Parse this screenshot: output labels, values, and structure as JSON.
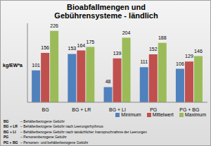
{
  "chart_data": {
    "type": "bar",
    "title": "Bioabfallmengen und Gebührensysteme - ländlich",
    "y_label": "kg/EW*a",
    "categories": [
      "BG",
      "BG + LR",
      "BG + LI",
      "PG",
      "PG + BG"
    ],
    "series": [
      {
        "name": "Minimum",
        "color": "#4f81bd",
        "values": [
          101,
          153,
          48,
          111,
          106
        ]
      },
      {
        "name": "Mittelwert",
        "color": "#c0504d",
        "values": [
          156,
          164,
          139,
          152,
          129
        ]
      },
      {
        "name": "Maximum",
        "color": "#9bbb59",
        "values": [
          226,
          175,
          204,
          188,
          146
        ]
      }
    ],
    "ylim": [
      0,
      250
    ],
    "tick_labels": "x",
    "grid": false,
    "data_labels": true,
    "legend": "bottom-right",
    "annotations": [
      [
        "BG",
        "– Behälterbezogene Gebühr"
      ],
      [
        "BG + LR",
        "– Behälterbezogene Gebühr nach Leerungsrhythmus"
      ],
      [
        "BG + LI",
        "– Behälterbezogene Gebühr nach tatsächlicher Inanspruchnahme der Leerungen"
      ],
      [
        "PG",
        "– Personenbezogene Gebühr"
      ],
      [
        "PG + BG",
        "– Personen- und behälterbezogene Gebühr"
      ]
    ]
  }
}
